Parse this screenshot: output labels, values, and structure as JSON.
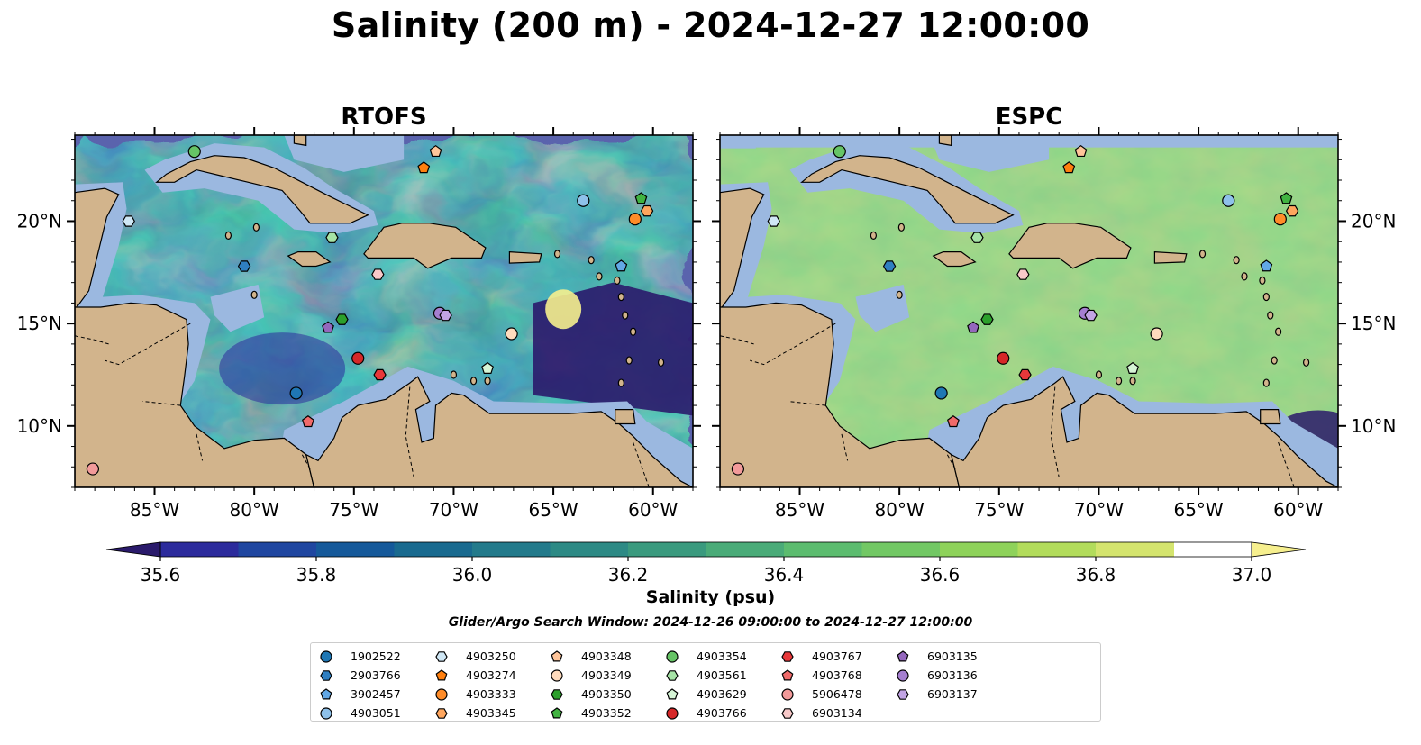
{
  "title": "Salinity (200 m) - 2024-12-27 12:00:00",
  "chart_data": {
    "type": "heatmap",
    "panels": [
      {
        "title": "RTOFS",
        "variant": "rtofs"
      },
      {
        "title": "ESPC",
        "variant": "espc"
      }
    ],
    "x_range": [
      -89,
      -58
    ],
    "y_range": [
      7,
      24.2
    ],
    "x_ticks": [
      {
        "value": -85,
        "label": "85°W"
      },
      {
        "value": -80,
        "label": "80°W"
      },
      {
        "value": -75,
        "label": "75°W"
      },
      {
        "value": -70,
        "label": "70°W"
      },
      {
        "value": -65,
        "label": "65°W"
      },
      {
        "value": -60,
        "label": "60°W"
      }
    ],
    "y_ticks": [
      {
        "value": 10,
        "label": "10°N"
      },
      {
        "value": 15,
        "label": "15°N"
      },
      {
        "value": 20,
        "label": "20°N"
      }
    ],
    "colorbar": {
      "label": "Salinity (psu)",
      "min": 35.5,
      "max": 37.0,
      "step": 0.1,
      "extend": "both",
      "colors": [
        "#2a1a6b",
        "#2c2b9c",
        "#1f46a0",
        "#15599a",
        "#196a8f",
        "#237a8b",
        "#2d8a85",
        "#3a9a7e",
        "#4aab78",
        "#5cbc6f",
        "#72c864",
        "#8ed25a",
        "#b2dc5b",
        "#d4e46e",
        "#f6ef8e"
      ],
      "ticks": [
        {
          "value": 35.6,
          "label": "35.6"
        },
        {
          "value": 35.8,
          "label": "35.8"
        },
        {
          "value": 36.0,
          "label": "36.0"
        },
        {
          "value": 36.2,
          "label": "36.2"
        },
        {
          "value": 36.4,
          "label": "36.4"
        },
        {
          "value": 36.6,
          "label": "36.6"
        },
        {
          "value": 36.8,
          "label": "36.8"
        },
        {
          "value": 37.0,
          "label": "37.0"
        }
      ]
    },
    "colors": {
      "land": "#d2b48c",
      "shelf": "#9bb8e0",
      "coast": "#000000"
    },
    "search_window": "Glider/Argo Search Window: 2024-12-26 09:00:00 to 2024-12-27 12:00:00",
    "platforms": [
      {
        "id": "1902522",
        "marker": "circle",
        "color": "#1f77b4",
        "lon": -77.9,
        "lat": 11.6
      },
      {
        "id": "2903766",
        "marker": "hexagon",
        "color": "#2f7fc1",
        "lon": -80.5,
        "lat": 17.8
      },
      {
        "id": "3902457",
        "marker": "pentagon",
        "color": "#62a8e6",
        "lon": -61.6,
        "lat": 17.8
      },
      {
        "id": "4903051",
        "marker": "circle",
        "color": "#8ec1ea",
        "lon": -63.5,
        "lat": 21.0
      },
      {
        "id": "4903250",
        "marker": "hexagon",
        "color": "#cfe7f5",
        "lon": -86.3,
        "lat": 20.0
      },
      {
        "id": "4903274",
        "marker": "pentagon",
        "color": "#ff7f0e",
        "lon": -71.5,
        "lat": 22.6
      },
      {
        "id": "4903333",
        "marker": "circle",
        "color": "#ff8c29",
        "lon": -60.9,
        "lat": 20.1
      },
      {
        "id": "4903345",
        "marker": "hexagon",
        "color": "#ffa65e",
        "lon": -60.3,
        "lat": 20.5
      },
      {
        "id": "4903348",
        "marker": "pentagon",
        "color": "#ffc59a",
        "lon": -70.9,
        "lat": 23.4
      },
      {
        "id": "4903349",
        "marker": "circle",
        "color": "#ffdbbd",
        "lon": -67.1,
        "lat": 14.5
      },
      {
        "id": "4903350",
        "marker": "hexagon",
        "color": "#2ca02c",
        "lon": -75.6,
        "lat": 15.2
      },
      {
        "id": "4903352",
        "marker": "pentagon",
        "color": "#41b341",
        "lon": -60.6,
        "lat": 21.1
      },
      {
        "id": "4903354",
        "marker": "circle",
        "color": "#66c466",
        "lon": -83.0,
        "lat": 23.4
      },
      {
        "id": "4903561",
        "marker": "hexagon",
        "color": "#a6e3a6",
        "lon": -76.1,
        "lat": 19.2
      },
      {
        "id": "4903629",
        "marker": "pentagon",
        "color": "#d6f5d6",
        "lon": -68.3,
        "lat": 12.8
      },
      {
        "id": "4903766",
        "marker": "circle",
        "color": "#d62728",
        "lon": -74.8,
        "lat": 13.3
      },
      {
        "id": "4903767",
        "marker": "hexagon",
        "color": "#e8383a",
        "lon": -73.7,
        "lat": 12.5
      },
      {
        "id": "4903768",
        "marker": "pentagon",
        "color": "#f06a6a",
        "lon": -77.3,
        "lat": 10.2
      },
      {
        "id": "5906478",
        "marker": "circle",
        "color": "#f29a9a",
        "lon": -88.1,
        "lat": 7.9
      },
      {
        "id": "6903134",
        "marker": "hexagon",
        "color": "#f8c9c9",
        "lon": -73.8,
        "lat": 17.4
      },
      {
        "id": "6903135",
        "marker": "pentagon",
        "color": "#9467bd",
        "lon": -76.3,
        "lat": 14.8
      },
      {
        "id": "6903136",
        "marker": "circle",
        "color": "#a57fd0",
        "lon": -70.7,
        "lat": 15.5
      },
      {
        "id": "6903137",
        "marker": "hexagon",
        "color": "#c2a4e4",
        "lon": -70.4,
        "lat": 15.4
      }
    ]
  }
}
